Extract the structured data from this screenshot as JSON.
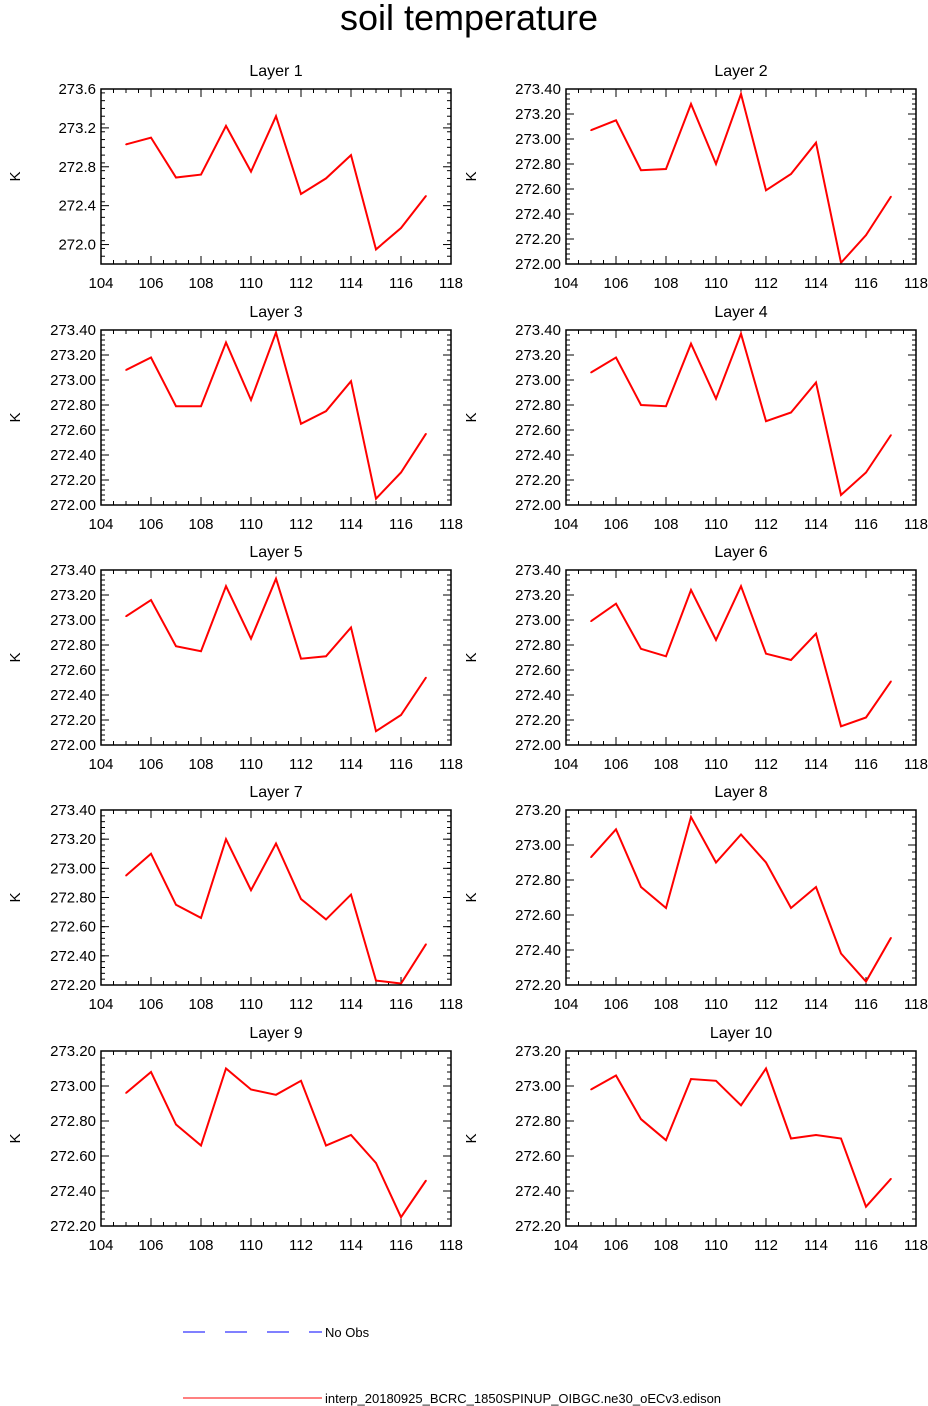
{
  "title": "soil temperature",
  "legend": [
    {
      "label": "No Obs",
      "color": "#0000ff",
      "style": "dashed"
    },
    {
      "label": "interp_20180925_BCRC_1850SPINUP_OIBGC.ne30_oECv3.edison",
      "color": "#ff0000",
      "style": "solid"
    }
  ],
  "chart_data": [
    {
      "type": "line",
      "title": "Layer 1",
      "xlabel": "",
      "ylabel": "K",
      "xlim": [
        104,
        118
      ],
      "ylim": [
        271.8,
        273.6
      ],
      "yticks": [
        "272.0",
        "272.4",
        "272.8",
        "273.2",
        "273.6"
      ],
      "ytick_values": [
        272.0,
        272.4,
        272.8,
        273.2,
        273.6
      ],
      "xticks": [
        "104",
        "106",
        "108",
        "110",
        "112",
        "114",
        "116",
        "118"
      ],
      "series": [
        {
          "name": "interp_20180925_BCRC_1850SPINUP_OIBGC.ne30_oECv3.edison",
          "color": "#ff0000",
          "x": [
            105,
            106,
            107,
            108,
            109,
            110,
            111,
            112,
            113,
            114,
            115,
            116,
            117
          ],
          "y": [
            273.03,
            273.1,
            272.69,
            272.72,
            273.22,
            272.75,
            273.32,
            272.52,
            272.68,
            272.92,
            271.95,
            272.17,
            272.5
          ]
        }
      ]
    },
    {
      "type": "line",
      "title": "Layer 2",
      "xlabel": "",
      "ylabel": "K",
      "xlim": [
        104,
        118
      ],
      "ylim": [
        272.0,
        273.4
      ],
      "yticks": [
        "272.00",
        "272.20",
        "272.40",
        "272.60",
        "272.80",
        "273.00",
        "273.20",
        "273.40"
      ],
      "ytick_values": [
        272.0,
        272.2,
        272.4,
        272.6,
        272.8,
        273.0,
        273.2,
        273.4
      ],
      "xticks": [
        "104",
        "106",
        "108",
        "110",
        "112",
        "114",
        "116",
        "118"
      ],
      "series": [
        {
          "name": "interp_20180925_BCRC_1850SPINUP_OIBGC.ne30_oECv3.edison",
          "color": "#ff0000",
          "x": [
            105,
            106,
            107,
            108,
            109,
            110,
            111,
            112,
            113,
            114,
            115,
            116,
            117
          ],
          "y": [
            273.07,
            273.15,
            272.75,
            272.76,
            273.28,
            272.8,
            273.36,
            272.59,
            272.72,
            272.97,
            272.01,
            272.23,
            272.54
          ]
        }
      ]
    },
    {
      "type": "line",
      "title": "Layer 3",
      "xlabel": "",
      "ylabel": "K",
      "xlim": [
        104,
        118
      ],
      "ylim": [
        272.0,
        273.4
      ],
      "yticks": [
        "272.00",
        "272.20",
        "272.40",
        "272.60",
        "272.80",
        "273.00",
        "273.20",
        "273.40"
      ],
      "ytick_values": [
        272.0,
        272.2,
        272.4,
        272.6,
        272.8,
        273.0,
        273.2,
        273.4
      ],
      "xticks": [
        "104",
        "106",
        "108",
        "110",
        "112",
        "114",
        "116",
        "118"
      ],
      "series": [
        {
          "name": "interp_20180925_BCRC_1850SPINUP_OIBGC.ne30_oECv3.edison",
          "color": "#ff0000",
          "x": [
            105,
            106,
            107,
            108,
            109,
            110,
            111,
            112,
            113,
            114,
            115,
            116,
            117
          ],
          "y": [
            273.08,
            273.18,
            272.79,
            272.79,
            273.3,
            272.84,
            273.38,
            272.65,
            272.75,
            272.99,
            272.05,
            272.26,
            272.57
          ]
        }
      ]
    },
    {
      "type": "line",
      "title": "Layer 4",
      "xlabel": "",
      "ylabel": "K",
      "xlim": [
        104,
        118
      ],
      "ylim": [
        272.0,
        273.4
      ],
      "yticks": [
        "272.00",
        "272.20",
        "272.40",
        "272.60",
        "272.80",
        "273.00",
        "273.20",
        "273.40"
      ],
      "ytick_values": [
        272.0,
        272.2,
        272.4,
        272.6,
        272.8,
        273.0,
        273.2,
        273.4
      ],
      "xticks": [
        "104",
        "106",
        "108",
        "110",
        "112",
        "114",
        "116",
        "118"
      ],
      "series": [
        {
          "name": "interp_20180925_BCRC_1850SPINUP_OIBGC.ne30_oECv3.edison",
          "color": "#ff0000",
          "x": [
            105,
            106,
            107,
            108,
            109,
            110,
            111,
            112,
            113,
            114,
            115,
            116,
            117
          ],
          "y": [
            273.06,
            273.18,
            272.8,
            272.79,
            273.29,
            272.85,
            273.37,
            272.67,
            272.74,
            272.98,
            272.08,
            272.26,
            272.56
          ]
        }
      ]
    },
    {
      "type": "line",
      "title": "Layer 5",
      "xlabel": "",
      "ylabel": "K",
      "xlim": [
        104,
        118
      ],
      "ylim": [
        272.0,
        273.4
      ],
      "yticks": [
        "272.00",
        "272.20",
        "272.40",
        "272.60",
        "272.80",
        "273.00",
        "273.20",
        "273.40"
      ],
      "ytick_values": [
        272.0,
        272.2,
        272.4,
        272.6,
        272.8,
        273.0,
        273.2,
        273.4
      ],
      "xticks": [
        "104",
        "106",
        "108",
        "110",
        "112",
        "114",
        "116",
        "118"
      ],
      "series": [
        {
          "name": "interp_20180925_BCRC_1850SPINUP_OIBGC.ne30_oECv3.edison",
          "color": "#ff0000",
          "x": [
            105,
            106,
            107,
            108,
            109,
            110,
            111,
            112,
            113,
            114,
            115,
            116,
            117
          ],
          "y": [
            273.03,
            273.16,
            272.79,
            272.75,
            273.27,
            272.85,
            273.33,
            272.69,
            272.71,
            272.94,
            272.11,
            272.24,
            272.54
          ]
        }
      ]
    },
    {
      "type": "line",
      "title": "Layer 6",
      "xlabel": "",
      "ylabel": "K",
      "xlim": [
        104,
        118
      ],
      "ylim": [
        272.0,
        273.4
      ],
      "yticks": [
        "272.00",
        "272.20",
        "272.40",
        "272.60",
        "272.80",
        "273.00",
        "273.20",
        "273.40"
      ],
      "ytick_values": [
        272.0,
        272.2,
        272.4,
        272.6,
        272.8,
        273.0,
        273.2,
        273.4
      ],
      "xticks": [
        "104",
        "106",
        "108",
        "110",
        "112",
        "114",
        "116",
        "118"
      ],
      "series": [
        {
          "name": "interp_20180925_BCRC_1850SPINUP_OIBGC.ne30_oECv3.edison",
          "color": "#ff0000",
          "x": [
            105,
            106,
            107,
            108,
            109,
            110,
            111,
            112,
            113,
            114,
            115,
            116,
            117
          ],
          "y": [
            272.99,
            273.13,
            272.77,
            272.71,
            273.24,
            272.84,
            273.27,
            272.73,
            272.68,
            272.89,
            272.15,
            272.22,
            272.51
          ]
        }
      ]
    },
    {
      "type": "line",
      "title": "Layer 7",
      "xlabel": "",
      "ylabel": "K",
      "xlim": [
        104,
        118
      ],
      "ylim": [
        272.2,
        273.4
      ],
      "yticks": [
        "272.20",
        "272.40",
        "272.60",
        "272.80",
        "273.00",
        "273.20",
        "273.40"
      ],
      "ytick_values": [
        272.2,
        272.4,
        272.6,
        272.8,
        273.0,
        273.2,
        273.4
      ],
      "xticks": [
        "104",
        "106",
        "108",
        "110",
        "112",
        "114",
        "116",
        "118"
      ],
      "series": [
        {
          "name": "interp_20180925_BCRC_1850SPINUP_OIBGC.ne30_oECv3.edison",
          "color": "#ff0000",
          "x": [
            105,
            106,
            107,
            108,
            109,
            110,
            111,
            112,
            113,
            114,
            115,
            116,
            117
          ],
          "y": [
            272.95,
            273.1,
            272.75,
            272.66,
            273.2,
            272.85,
            273.17,
            272.79,
            272.65,
            272.82,
            272.23,
            272.21,
            272.48
          ]
        }
      ]
    },
    {
      "type": "line",
      "title": "Layer 8",
      "xlabel": "",
      "ylabel": "K",
      "xlim": [
        104,
        118
      ],
      "ylim": [
        272.2,
        273.2
      ],
      "yticks": [
        "272.20",
        "272.40",
        "272.60",
        "272.80",
        "273.00",
        "273.20"
      ],
      "ytick_values": [
        272.2,
        272.4,
        272.6,
        272.8,
        273.0,
        273.2
      ],
      "xticks": [
        "104",
        "106",
        "108",
        "110",
        "112",
        "114",
        "116",
        "118"
      ],
      "series": [
        {
          "name": "interp_20180925_BCRC_1850SPINUP_OIBGC.ne30_oECv3.edison",
          "color": "#ff0000",
          "x": [
            105,
            106,
            107,
            108,
            109,
            110,
            111,
            112,
            113,
            114,
            115,
            116,
            117
          ],
          "y": [
            272.93,
            273.09,
            272.76,
            272.64,
            273.16,
            272.9,
            273.06,
            272.9,
            272.64,
            272.76,
            272.38,
            272.22,
            272.47
          ]
        }
      ]
    },
    {
      "type": "line",
      "title": "Layer 9",
      "xlabel": "",
      "ylabel": "K",
      "xlim": [
        104,
        118
      ],
      "ylim": [
        272.2,
        273.2
      ],
      "yticks": [
        "272.20",
        "272.40",
        "272.60",
        "272.80",
        "273.00",
        "273.20"
      ],
      "ytick_values": [
        272.2,
        272.4,
        272.6,
        272.8,
        273.0,
        273.2
      ],
      "xticks": [
        "104",
        "106",
        "108",
        "110",
        "112",
        "114",
        "116",
        "118"
      ],
      "series": [
        {
          "name": "interp_20180925_BCRC_1850SPINUP_OIBGC.ne30_oECv3.edison",
          "color": "#ff0000",
          "x": [
            105,
            106,
            107,
            108,
            109,
            110,
            111,
            112,
            113,
            114,
            115,
            116,
            117
          ],
          "y": [
            272.96,
            273.08,
            272.78,
            272.66,
            273.1,
            272.98,
            272.95,
            273.03,
            272.66,
            272.72,
            272.56,
            272.25,
            272.46
          ]
        }
      ]
    },
    {
      "type": "line",
      "title": "Layer 10",
      "xlabel": "",
      "ylabel": "K",
      "xlim": [
        104,
        118
      ],
      "ylim": [
        272.2,
        273.2
      ],
      "yticks": [
        "272.20",
        "272.40",
        "272.60",
        "272.80",
        "273.00",
        "273.20"
      ],
      "ytick_values": [
        272.2,
        272.4,
        272.6,
        272.8,
        273.0,
        273.2
      ],
      "xticks": [
        "104",
        "106",
        "108",
        "110",
        "112",
        "114",
        "116",
        "118"
      ],
      "series": [
        {
          "name": "interp_20180925_BCRC_1850SPINUP_OIBGC.ne30_oECv3.edison",
          "color": "#ff0000",
          "x": [
            105,
            106,
            107,
            108,
            109,
            110,
            111,
            112,
            113,
            114,
            115,
            116,
            117
          ],
          "y": [
            272.98,
            273.06,
            272.81,
            272.69,
            273.04,
            273.03,
            272.89,
            273.1,
            272.7,
            272.72,
            272.7,
            272.31,
            272.47
          ]
        }
      ]
    }
  ]
}
